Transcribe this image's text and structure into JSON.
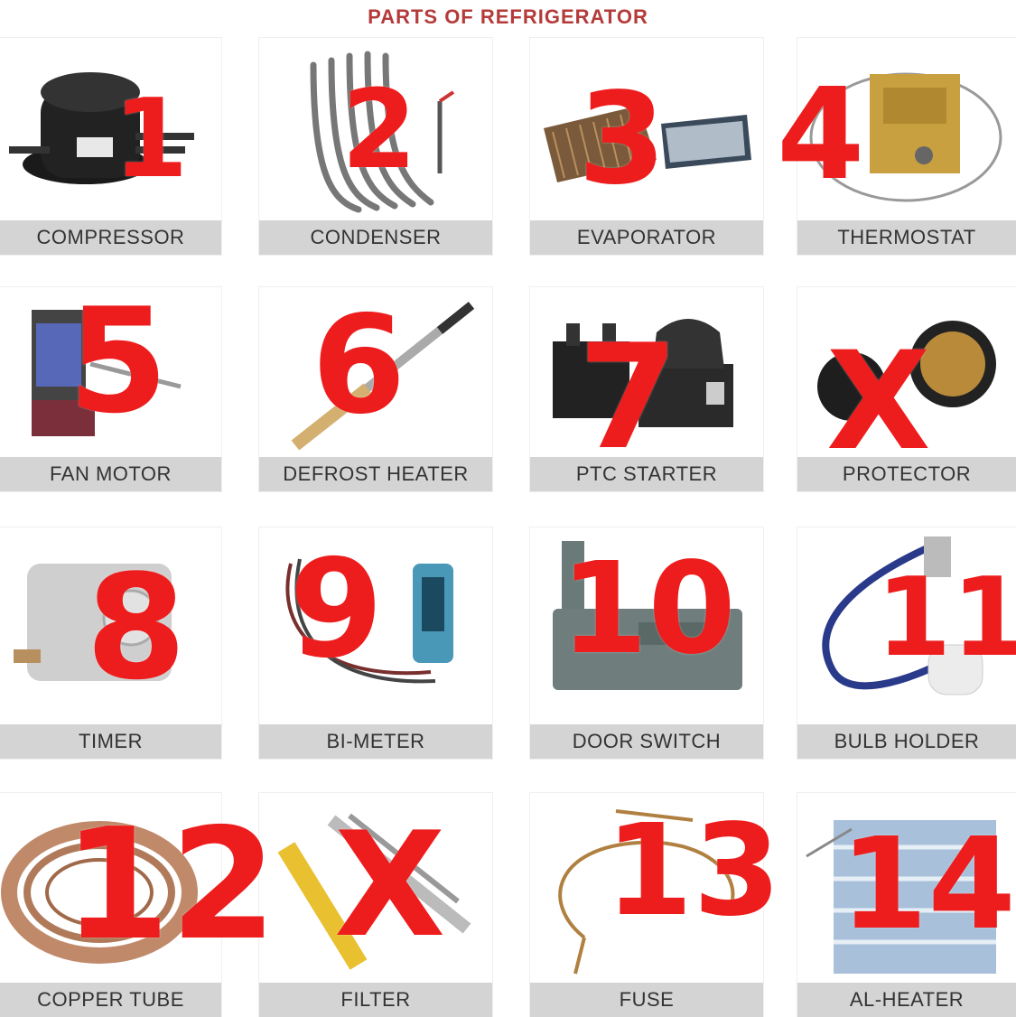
{
  "title": "PARTS OF REFRIGERATOR",
  "colors": {
    "marker": "#ee1d1d",
    "label_bar": "#d4d4d4",
    "title": "#b53a3a"
  },
  "parts": [
    {
      "label": "COMPRESSOR",
      "mark": "1",
      "icon": "compressor-icon"
    },
    {
      "label": "CONDENSER",
      "mark": "2",
      "icon": "condenser-coil-icon"
    },
    {
      "label": "EVAPORATOR",
      "mark": "3",
      "icon": "evaporator-fins-icon"
    },
    {
      "label": "THERMOSTAT",
      "mark": "4",
      "icon": "thermostat-icon"
    },
    {
      "label": "FAN MOTOR",
      "mark": "5",
      "icon": "fan-motor-icon"
    },
    {
      "label": "DEFROST  HEATER",
      "mark": "6",
      "icon": "defrost-heater-icon"
    },
    {
      "label": "PTC STARTER",
      "mark": "7",
      "icon": "ptc-starter-icon"
    },
    {
      "label": "PROTECTOR",
      "mark": "X",
      "icon": "protector-icon"
    },
    {
      "label": "TIMER",
      "mark": "8",
      "icon": "timer-icon"
    },
    {
      "label": "BI-METER",
      "mark": "9",
      "icon": "bi-meter-icon"
    },
    {
      "label": "DOOR SWITCH",
      "mark": "10",
      "icon": "door-switch-icon"
    },
    {
      "label": "BULB HOLDER",
      "mark": "11",
      "icon": "bulb-holder-icon"
    },
    {
      "label": "COPPER TUBE",
      "mark": "12",
      "icon": "copper-tube-icon"
    },
    {
      "label": "FILTER",
      "mark": "X",
      "icon": "filter-icon"
    },
    {
      "label": "FUSE",
      "mark": "13",
      "icon": "fuse-icon"
    },
    {
      "label": "AL-HEATER",
      "mark": "14",
      "icon": "al-heater-icon"
    }
  ]
}
